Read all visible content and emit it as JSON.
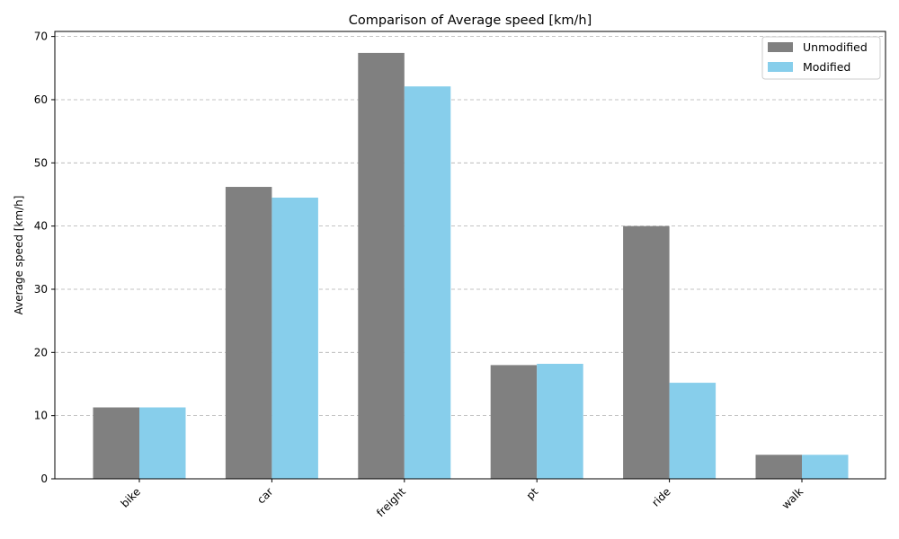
{
  "chart_data": {
    "type": "bar",
    "title": "Comparison of Average speed [km/h]",
    "xlabel": "",
    "ylabel": "Average speed [km/h]",
    "categories": [
      "bike",
      "car",
      "freight",
      "pt",
      "ride",
      "walk"
    ],
    "series": [
      {
        "name": "Unmodified",
        "color": "#808080",
        "values": [
          11.3,
          46.2,
          67.4,
          18.0,
          40.0,
          3.8
        ]
      },
      {
        "name": "Modified",
        "color": "#87ceeb",
        "values": [
          11.3,
          44.5,
          62.1,
          18.2,
          15.2,
          3.8
        ]
      }
    ],
    "ylim": [
      0,
      70.8
    ],
    "yticks": [
      0,
      10,
      20,
      30,
      40,
      50,
      60,
      70
    ],
    "grid": "y-dashed",
    "legend_position": "top-right"
  }
}
